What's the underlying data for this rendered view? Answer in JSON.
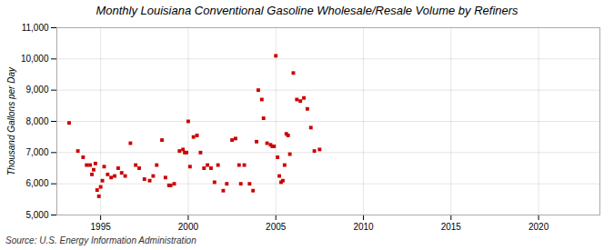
{
  "chart_data": {
    "type": "scatter",
    "title": "Monthly Louisiana Conventional Gasoline Wholesale/Resale Volume by Refiners",
    "ylabel": "Thousand Gallons per Day",
    "source": "Source: U.S. Energy Information Administration",
    "color": "#cc0000",
    "marker": "square",
    "grid": true,
    "xlim": [
      1992.5,
      2023.5
    ],
    "xticks": [
      1995,
      2000,
      2005,
      2010,
      2015,
      2020
    ],
    "ylim": [
      5000,
      11000
    ],
    "yticks": [
      {
        "value": 5000,
        "label": "5,000"
      },
      {
        "value": 6000,
        "label": "6,000"
      },
      {
        "value": 7000,
        "label": "7,000"
      },
      {
        "value": 8000,
        "label": "8,000"
      },
      {
        "value": 9000,
        "label": "9,000"
      },
      {
        "value": 10000,
        "label": "10,000"
      },
      {
        "value": 11000,
        "label": "11,000"
      }
    ],
    "x": [
      1993.2,
      1993.7,
      1994.0,
      1994.2,
      1994.4,
      1994.5,
      1994.6,
      1994.7,
      1994.8,
      1994.9,
      1995.0,
      1995.1,
      1995.2,
      1995.4,
      1995.6,
      1995.8,
      1996.0,
      1996.2,
      1996.4,
      1996.7,
      1997.0,
      1997.2,
      1997.5,
      1997.8,
      1998.0,
      1998.2,
      1998.5,
      1998.7,
      1998.9,
      1999.0,
      1999.2,
      1999.5,
      1999.7,
      1999.8,
      1999.9,
      2000.0,
      2000.1,
      2000.3,
      2000.5,
      2000.7,
      2000.9,
      2001.1,
      2001.3,
      2001.5,
      2001.7,
      2002.0,
      2002.2,
      2002.5,
      2002.7,
      2002.9,
      2003.0,
      2003.2,
      2003.5,
      2003.7,
      2003.9,
      2004.0,
      2004.2,
      2004.3,
      2004.5,
      2004.7,
      2004.8,
      2004.9,
      2005.0,
      2005.1,
      2005.2,
      2005.3,
      2005.4,
      2005.5,
      2005.6,
      2005.7,
      2005.8,
      2006.0,
      2006.2,
      2006.4,
      2006.6,
      2006.8,
      2007.0,
      2007.2,
      2007.5
    ],
    "values": [
      7950,
      7050,
      6850,
      6600,
      6600,
      6300,
      6450,
      6650,
      5800,
      5600,
      5900,
      6100,
      6550,
      6300,
      6200,
      6250,
      6500,
      6350,
      6250,
      7300,
      6600,
      6500,
      6150,
      6100,
      6250,
      6600,
      7400,
      6200,
      5950,
      5950,
      6000,
      7050,
      7100,
      7000,
      7000,
      8000,
      6550,
      7500,
      7550,
      7000,
      6500,
      6600,
      6500,
      6050,
      6600,
      5780,
      6000,
      7400,
      7450,
      6600,
      6000,
      6600,
      6000,
      5780,
      7350,
      9000,
      8700,
      8100,
      7300,
      7250,
      7200,
      7200,
      10100,
      6850,
      6250,
      6050,
      6100,
      6600,
      7600,
      7550,
      6950,
      9550,
      8700,
      8650,
      8750,
      8400,
      7800,
      7050,
      7100
    ]
  }
}
